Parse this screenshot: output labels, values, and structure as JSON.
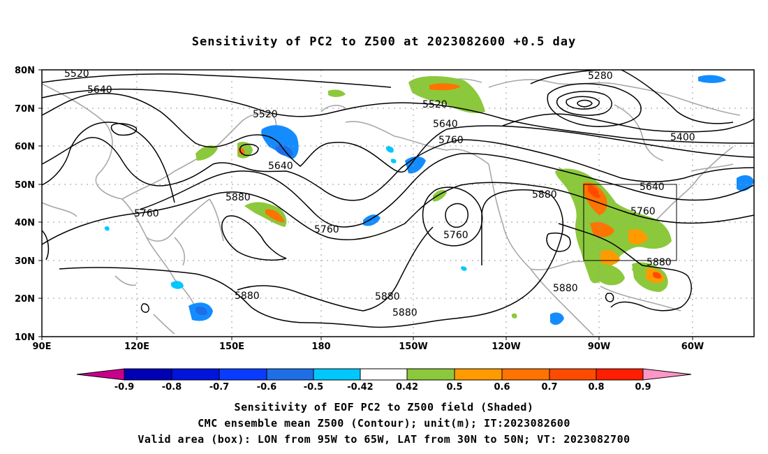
{
  "title": "Sensitivity of PC2 to Z500 at 2023082600 +0.5 day",
  "lat_labels": [
    "80N",
    "70N",
    "60N",
    "50N",
    "40N",
    "30N",
    "20N",
    "10N"
  ],
  "lon_labels": [
    "90E",
    "120E",
    "150E",
    "180",
    "150W",
    "120W",
    "90W",
    "60W"
  ],
  "contour_values": [
    "5280",
    "5400",
    "5520",
    "5520",
    "5520",
    "5640",
    "5640",
    "5640",
    "5640",
    "5760",
    "5760",
    "5760",
    "5760",
    "5760",
    "5880",
    "5880",
    "5880",
    "5880",
    "5880",
    "5880"
  ],
  "colorbar": {
    "labels": [
      "-0.9",
      "-0.8",
      "-0.7",
      "-0.6",
      "-0.5",
      "-0.42",
      "0.42",
      "0.5",
      "0.6",
      "0.7",
      "0.8",
      "0.9"
    ],
    "colors": {
      "low_ext": "#c8008c",
      "b1": "#0000b4",
      "b2": "#0014dc",
      "b3": "#0a3cff",
      "b4": "#1e6ee6",
      "b5": "#148cff",
      "b6": "#00c8ff",
      "zero": "#ffffff",
      "g1": "#8cc83c",
      "o1": "#ff9b00",
      "o2": "#ff7300",
      "o3": "#ff4b00",
      "r1": "#ff1e00",
      "high_ext": "#ff96c8"
    }
  },
  "captions": [
    "Sensitivity of EOF PC2 to Z500 field (Shaded)",
    "CMC ensemble mean Z500 (Contour); unit(m); IT:2023082600",
    "Valid area (box): LON from 95W to 65W, LAT from 30N to 50N; VT: 2023082700"
  ]
}
